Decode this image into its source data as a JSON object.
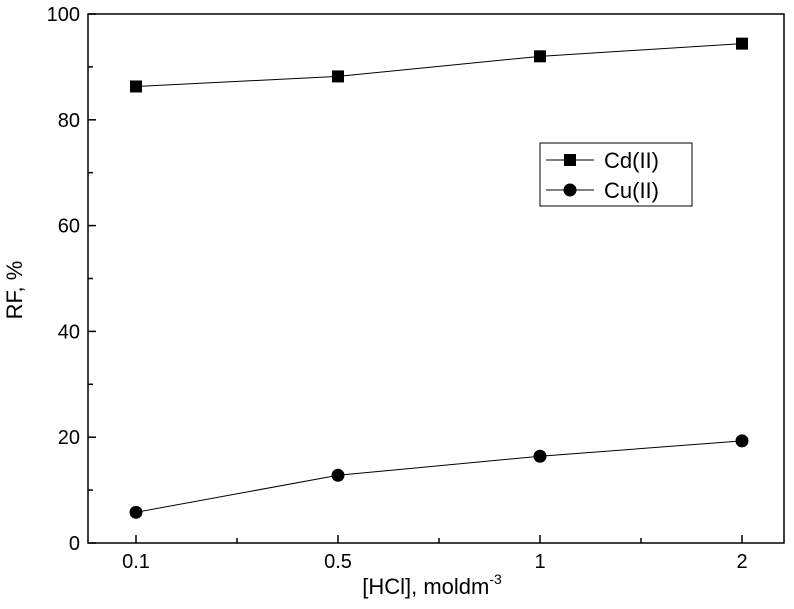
{
  "chart_data": {
    "type": "line",
    "x_scale": "categorical",
    "categories": [
      "0.1",
      "0.5",
      "1",
      "2"
    ],
    "xlabel": "[HCl], moldm",
    "xlabel_superscript": "-3",
    "ylabel": "RF, %",
    "ylim": [
      0,
      100
    ],
    "yticks": [
      "0",
      "20",
      "40",
      "60",
      "80",
      "100"
    ],
    "grid": false,
    "legend_position": "right-middle",
    "series": [
      {
        "name": "Cd(II)",
        "marker": "square",
        "values": [
          86.3,
          88.2,
          92.0,
          94.4
        ]
      },
      {
        "name": "Cu(II)",
        "marker": "circle",
        "values": [
          5.8,
          12.8,
          16.4,
          19.3
        ]
      }
    ]
  }
}
